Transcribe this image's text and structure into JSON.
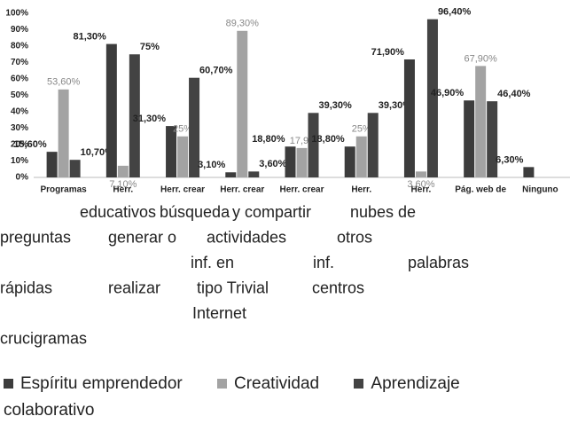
{
  "chart_data": {
    "type": "bar",
    "categories": [
      "Programas",
      "Herr.",
      "Herr. crear",
      "Herr. crear",
      "Herr. crear",
      "Herr.",
      "Herr.",
      "Pág. web de",
      "Ninguno"
    ],
    "category_label_continuation": [
      [
        "educativos",
        "búsqueda",
        "y compartir",
        "nubes de"
      ],
      [
        "preguntas",
        "generar o",
        "actividades",
        "otros"
      ],
      [
        "inf. en",
        "inf.",
        "palabras"
      ],
      [
        "rápidas",
        "realizar",
        "tipo Trivial",
        "centros"
      ],
      [
        "Internet"
      ],
      [
        "crucigramas"
      ]
    ],
    "series": [
      {
        "name": "Espíritu emprendedor",
        "color": "#3c3c3c",
        "values": [
          15.6,
          81.3,
          31.3,
          3.1,
          18.8,
          18.8,
          71.9,
          46.9,
          6.3
        ],
        "value_labels": [
          "15,60%",
          "81,30%",
          "31,30%",
          "3,10%",
          "18,80%",
          "18,80%",
          "71,90%",
          "46,90%",
          "6,30%"
        ]
      },
      {
        "name": "Creatividad",
        "color": "#a3a3a3",
        "values": [
          53.6,
          7.1,
          25,
          89.3,
          17.9,
          25,
          3.6,
          67.9,
          null
        ],
        "value_labels": [
          "53,60%",
          "7,10%",
          "25%",
          "89,30%",
          "17,90",
          "25%",
          "3,60%",
          "67,90%",
          null
        ]
      },
      {
        "name": "Aprendizaje colaborativo",
        "color": "#434343",
        "values": [
          10.7,
          75,
          60.7,
          3.6,
          39.3,
          39.3,
          96.4,
          46.4,
          null
        ],
        "value_labels": [
          "10,70%",
          "75%",
          "60,70%",
          "3,60%",
          "39,30%",
          "39,30%",
          "96,40%",
          "46,40%",
          null
        ]
      }
    ],
    "ylim": [
      0,
      100
    ],
    "yticks": [
      {
        "value": 0,
        "label": "0%"
      },
      {
        "value": 10,
        "label": "10%"
      },
      {
        "value": 20,
        "label": "20%"
      },
      {
        "value": 30,
        "label": "30%"
      },
      {
        "value": 40,
        "label": "40%"
      },
      {
        "value": 50,
        "label": "50%"
      },
      {
        "value": 60,
        "label": "60%"
      },
      {
        "value": 70,
        "label": "70%"
      },
      {
        "value": 80,
        "label": "80%"
      },
      {
        "value": 90,
        "label": "90%"
      },
      {
        "value": 100,
        "label": "100%"
      }
    ],
    "grid": false
  }
}
